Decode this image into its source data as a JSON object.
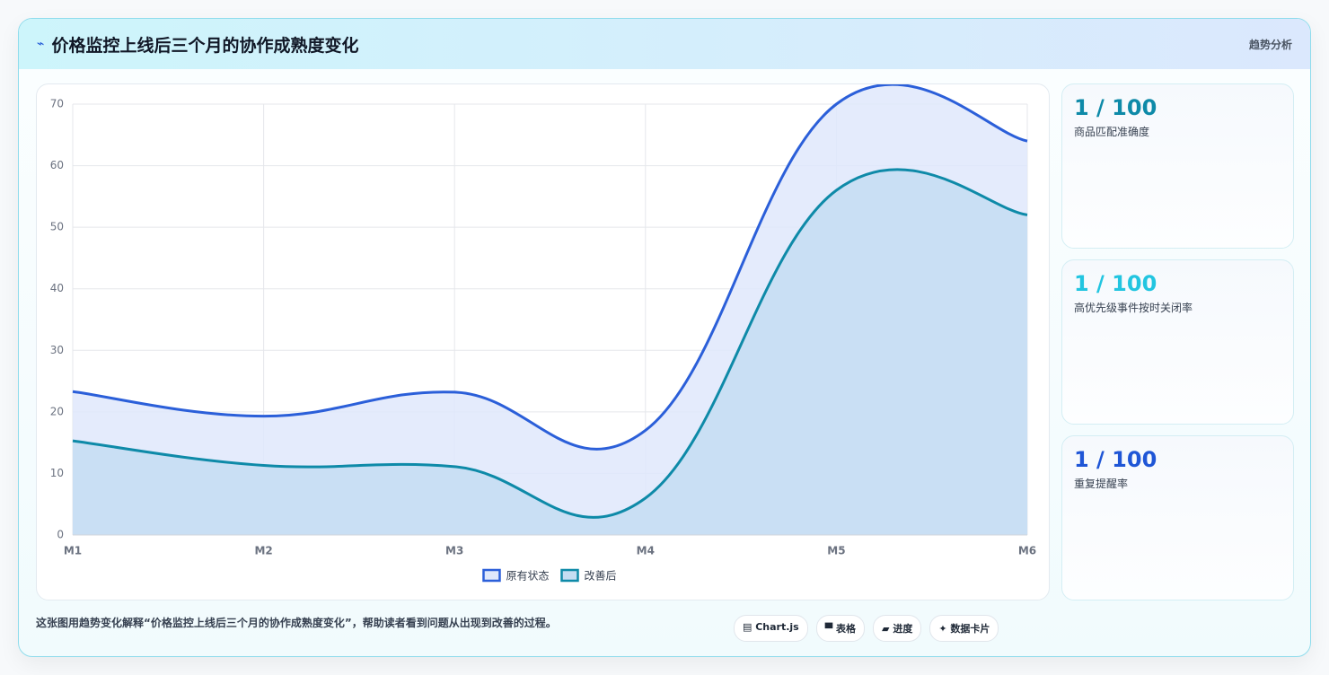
{
  "header": {
    "icon": "⌁",
    "title": "价格监控上线后三个月的协作成熟度变化",
    "tag": "趋势分析"
  },
  "chart_data": {
    "type": "line",
    "categories": [
      "M1",
      "M2",
      "M3",
      "M4",
      "M5",
      "M6"
    ],
    "series": [
      {
        "name": "原有状态",
        "color": "#2b5fd9",
        "fill": "#dfe8fb",
        "values": [
          23.3,
          19.3,
          23.2,
          17,
          70,
          64
        ]
      },
      {
        "name": "改善后",
        "color": "#0e8aa8",
        "fill": "#c4ddf2",
        "values": [
          15.3,
          11.3,
          11.1,
          6,
          56,
          52
        ]
      }
    ],
    "ylim": [
      0,
      70
    ],
    "yticks": [
      0,
      10,
      20,
      30,
      40,
      50,
      60,
      70
    ],
    "grid": true,
    "legend": "bottom"
  },
  "cards": [
    {
      "value": "1 / 100",
      "label": "商品匹配准确度",
      "color": "#0e8aa8"
    },
    {
      "value": "1 / 100",
      "label": "高优先级事件按时关闭率",
      "color": "#22c5e0"
    },
    {
      "value": "1 / 100",
      "label": "重复提醒率",
      "color": "#1f56d6"
    }
  ],
  "footer": {
    "text": "这张图用趋势变化解释“价格监控上线后三个月的协作成熟度变化”，帮助读者看到问题从出现到改善的过程。",
    "tags": [
      "▤ Chart.js",
      "▀ 表格",
      "▰ 进度",
      "✦ 数据卡片"
    ]
  }
}
